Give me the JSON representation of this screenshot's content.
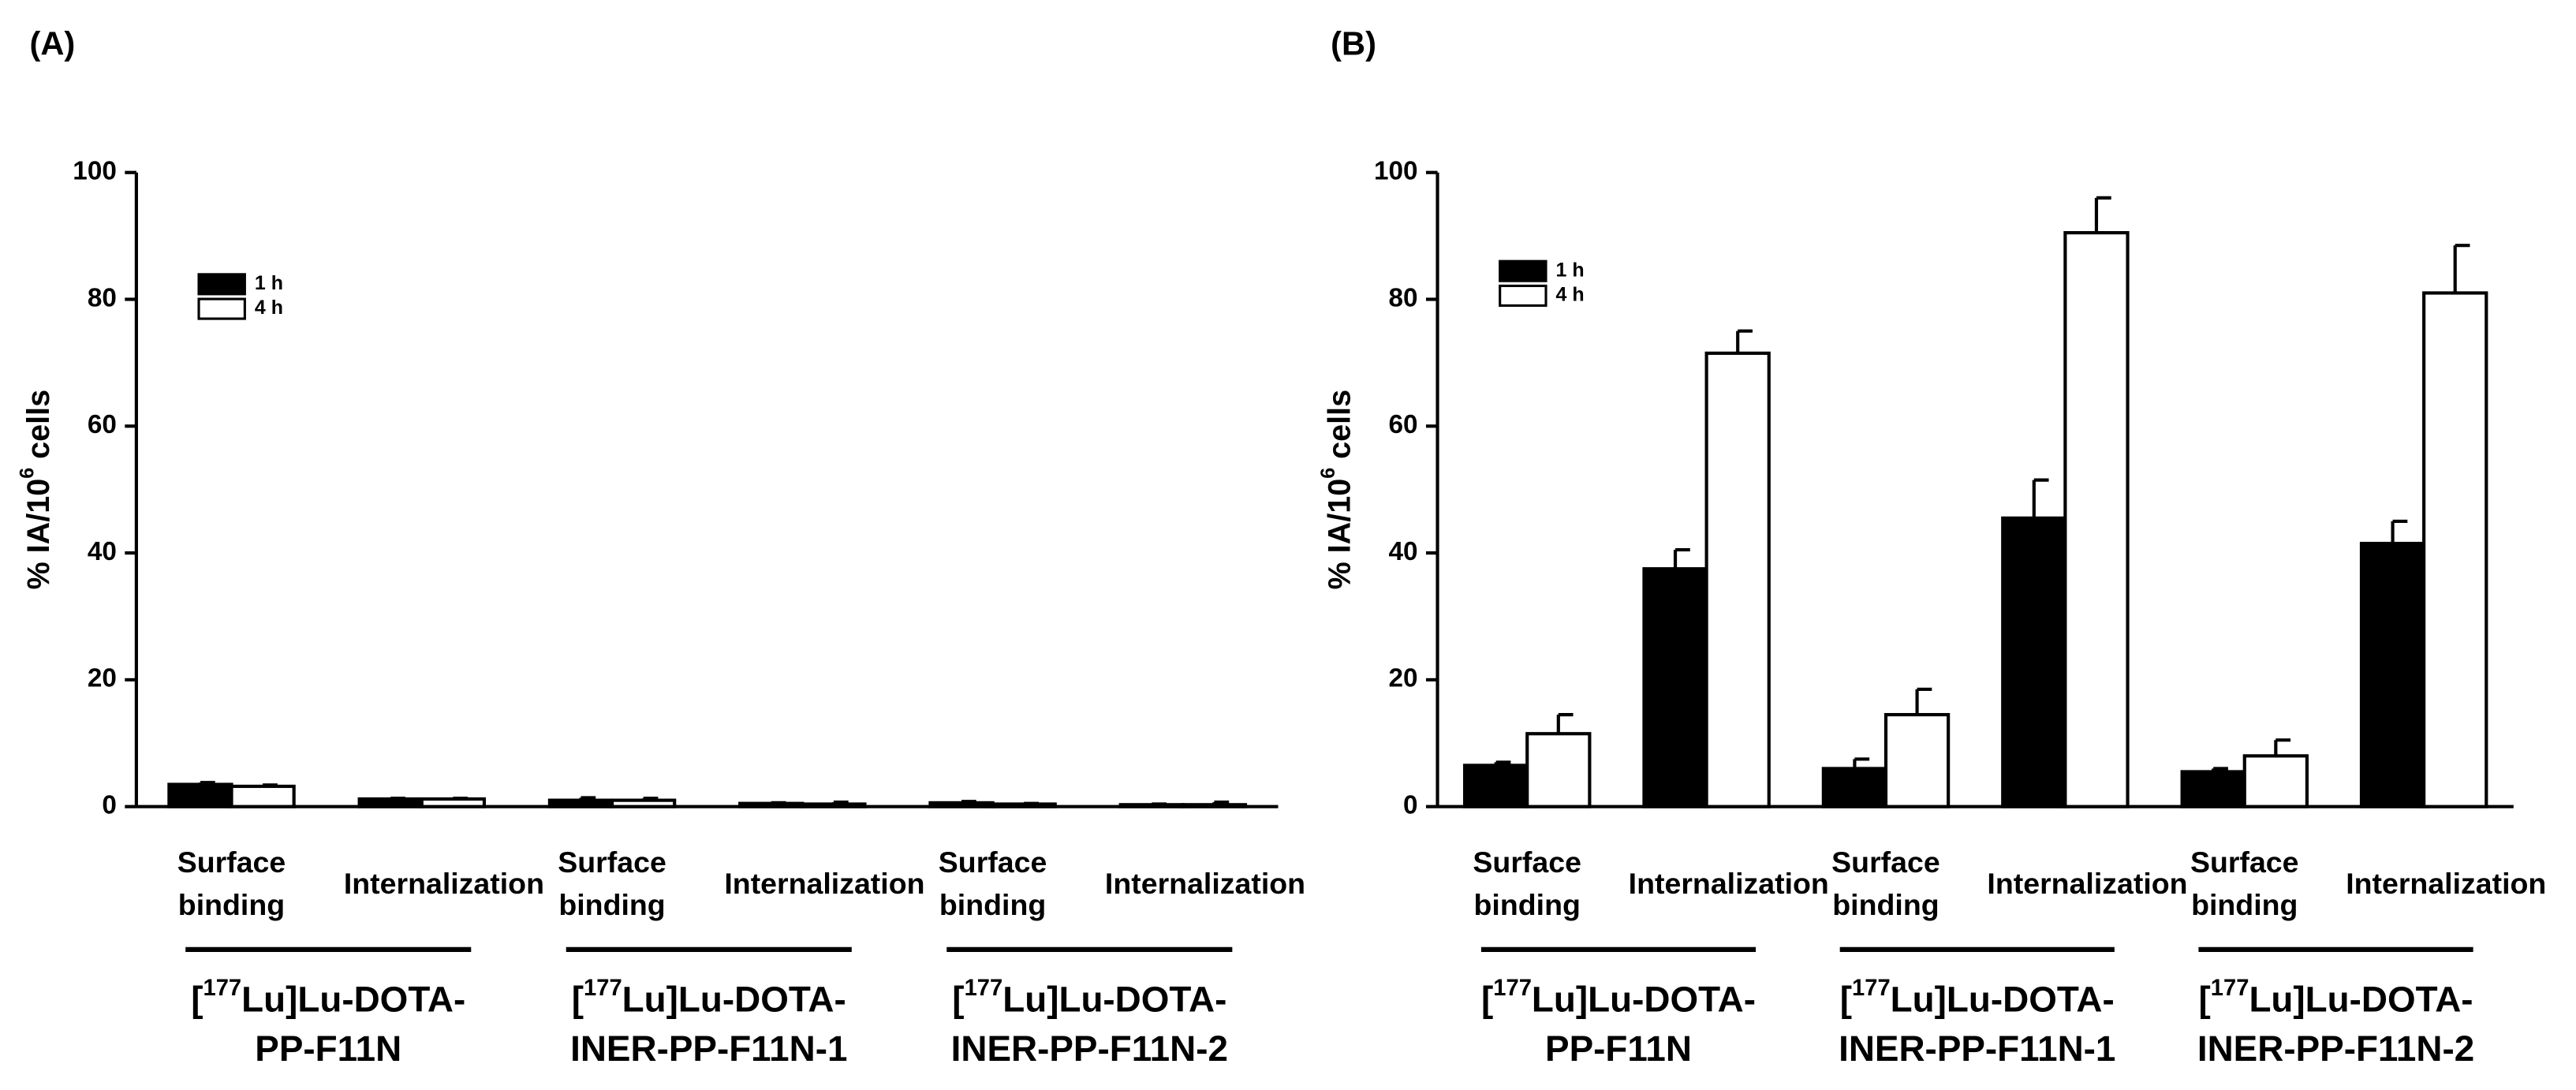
{
  "chart_data": [
    {
      "type": "bar",
      "panel_label": "(A)",
      "ylabel": {
        "text": "% IA/10",
        "sup": "6",
        "rest": " cells"
      },
      "categories": [
        "Surface binding",
        "Internalization",
        "Surface binding",
        "Internalization",
        "Surface binding",
        "Internalization"
      ],
      "groups": [
        {
          "open": "[",
          "sup": "177",
          "rest": "Lu]Lu-DOTA-",
          "line2": "PP-F11N"
        },
        {
          "open": "[",
          "sup": "177",
          "rest": "Lu]Lu-DOTA-",
          "line2": "INER-PP-F11N-1"
        },
        {
          "open": "[",
          "sup": "177",
          "rest": "Lu]Lu-DOTA-",
          "line2": "INER-PP-F11N-2"
        }
      ],
      "series": [
        {
          "name": "1 h",
          "color": "#000000",
          "values": [
            3.5,
            1.2,
            1.0,
            0.5,
            0.6,
            0.3
          ],
          "errors": [
            0.3,
            0.1,
            0.4,
            0.1,
            0.2,
            0.1
          ]
        },
        {
          "name": "4 h",
          "color": "#ffffff",
          "values": [
            3.2,
            1.2,
            1.0,
            0.4,
            0.4,
            0.3
          ],
          "errors": [
            0.2,
            0.1,
            0.3,
            0.3,
            0.1,
            0.4
          ]
        }
      ],
      "ylim": [
        0,
        100
      ],
      "yticks": [
        0,
        20,
        40,
        60,
        80,
        100
      ]
    },
    {
      "type": "bar",
      "panel_label": "(B)",
      "ylabel": {
        "text": "% IA/10",
        "sup": "6",
        "rest": " cells"
      },
      "categories": [
        "Surface binding",
        "Internalization",
        "Surface binding",
        "Internalization",
        "Surface binding",
        "Internalization"
      ],
      "groups": [
        {
          "open": "[",
          "sup": "177",
          "rest": "Lu]Lu-DOTA-",
          "line2": "PP-F11N"
        },
        {
          "open": "[",
          "sup": "177",
          "rest": "Lu]Lu-DOTA-",
          "line2": "INER-PP-F11N-1"
        },
        {
          "open": "[",
          "sup": "177",
          "rest": "Lu]Lu-DOTA-",
          "line2": "INER-PP-F11N-2"
        }
      ],
      "series": [
        {
          "name": "1 h",
          "color": "#000000",
          "values": [
            6.5,
            37.5,
            6,
            45.5,
            5.5,
            41.5
          ],
          "errors": [
            0.5,
            3,
            1.5,
            6,
            0.5,
            3.5
          ]
        },
        {
          "name": "4 h",
          "color": "#ffffff",
          "values": [
            11.5,
            71.5,
            14.5,
            90.5,
            8,
            81
          ],
          "errors": [
            3,
            3.5,
            4,
            5.5,
            2.5,
            7.5
          ]
        }
      ],
      "ylim": [
        0,
        100
      ],
      "yticks": [
        0,
        20,
        40,
        60,
        80,
        100
      ]
    }
  ]
}
